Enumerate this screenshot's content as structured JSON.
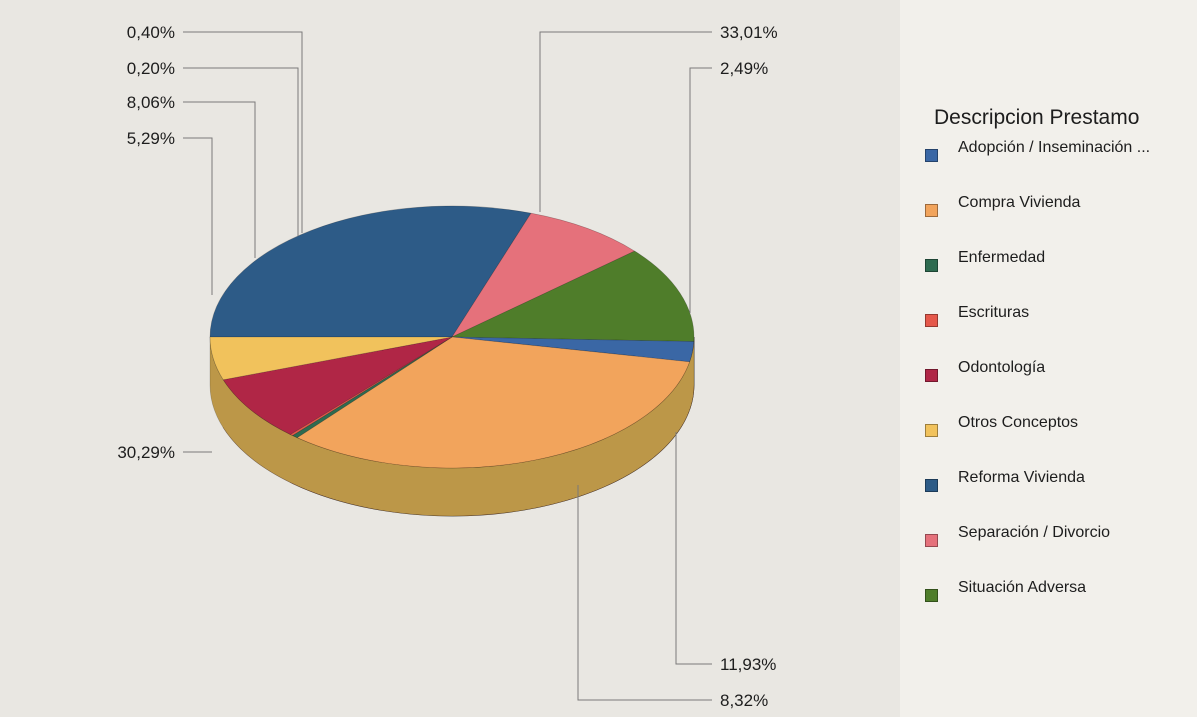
{
  "chart_data": {
    "type": "pie",
    "legend_title": "Descripcion Prestamo",
    "legend_placement": "right",
    "slices": [
      {
        "name": "Adopción / Inseminación ...",
        "value": 2.49,
        "label": "2,49%",
        "color": "#3a67a5"
      },
      {
        "name": "Compra Vivienda",
        "value": 33.01,
        "label": "33,01%",
        "color": "#f2a45c"
      },
      {
        "name": "Enfermedad",
        "value": 0.4,
        "label": "0,40%",
        "color": "#2e6b50"
      },
      {
        "name": "Escrituras",
        "value": 0.2,
        "label": "0,20%",
        "color": "#e5584a"
      },
      {
        "name": "Odontología",
        "value": 8.06,
        "label": "8,06%",
        "color": "#b02646"
      },
      {
        "name": "Otros Conceptos",
        "value": 5.29,
        "label": "5,29%",
        "color": "#f1c25c"
      },
      {
        "name": "Reforma Vivienda",
        "value": 30.29,
        "label": "30,29%",
        "color": "#2d5b87"
      },
      {
        "name": "Separación / Divorcio",
        "value": 8.32,
        "label": "8,32%",
        "color": "#e5717b"
      },
      {
        "name": "Situación Adversa",
        "value": 11.93,
        "label": "11,93%",
        "color": "#4f7d2a"
      }
    ]
  }
}
